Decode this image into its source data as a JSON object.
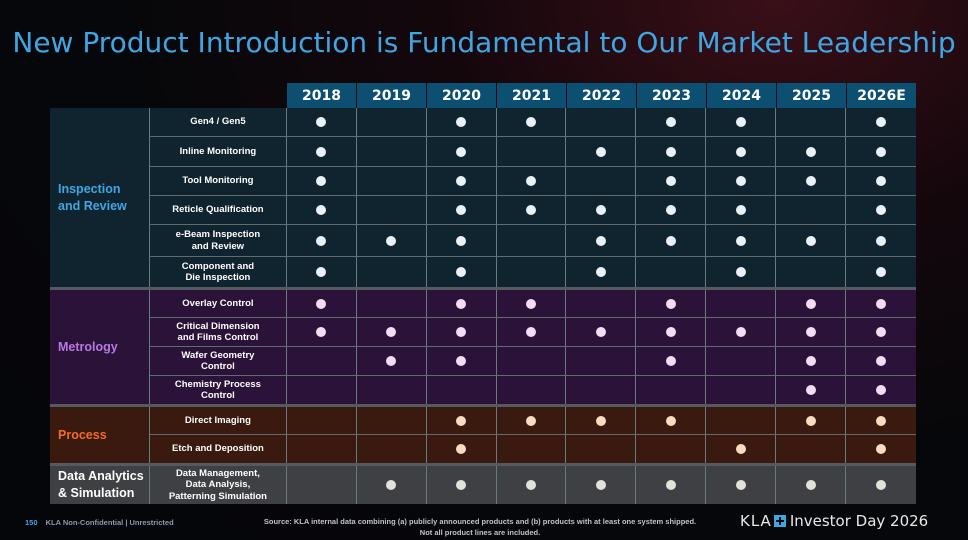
{
  "title": "New Product Introduction is Fundamental to Our Market Leadership",
  "years": [
    "2018",
    "2019",
    "2020",
    "2021",
    "2022",
    "2023",
    "2024",
    "2025",
    "2026E"
  ],
  "groups": [
    {
      "key": "insp",
      "label": "Inspection and Review",
      "label_lines": [
        "Inspection",
        "and Review"
      ],
      "rows": [
        {
          "name": [
            "Gen4 / Gen5"
          ],
          "h": 28,
          "marks": [
            1,
            0,
            1,
            1,
            0,
            1,
            1,
            0,
            1
          ]
        },
        {
          "name": [
            "Inline Monitoring"
          ],
          "h": 29,
          "marks": [
            1,
            0,
            1,
            0,
            1,
            1,
            1,
            1,
            1
          ]
        },
        {
          "name": [
            "Tool Monitoring"
          ],
          "h": 28,
          "marks": [
            1,
            0,
            1,
            1,
            0,
            1,
            1,
            1,
            1
          ]
        },
        {
          "name": [
            "Reticle Qualification"
          ],
          "h": 28,
          "marks": [
            1,
            0,
            1,
            1,
            1,
            1,
            1,
            0,
            1
          ]
        },
        {
          "name": [
            "e-Beam Inspection",
            "and Review"
          ],
          "h": 31,
          "marks": [
            1,
            1,
            1,
            0,
            1,
            1,
            1,
            1,
            1
          ]
        },
        {
          "name": [
            "Component and",
            "Die Inspection"
          ],
          "h": 30,
          "marks": [
            1,
            0,
            1,
            0,
            1,
            0,
            1,
            0,
            1
          ]
        }
      ]
    },
    {
      "key": "metro",
      "label": "Metrology",
      "label_lines": [
        "Metrology"
      ],
      "rows": [
        {
          "name": [
            "Overlay Control"
          ],
          "h": 27,
          "marks": [
            1,
            0,
            1,
            1,
            0,
            1,
            0,
            1,
            1
          ]
        },
        {
          "name": [
            "Critical Dimension",
            "and Films Control"
          ],
          "h": 28,
          "marks": [
            1,
            1,
            1,
            1,
            1,
            1,
            1,
            1,
            1
          ]
        },
        {
          "name": [
            "Wafer Geometry",
            "Control"
          ],
          "h": 28,
          "marks": [
            0,
            1,
            1,
            0,
            0,
            1,
            0,
            1,
            1
          ]
        },
        {
          "name": [
            "Chemistry Process",
            "Control"
          ],
          "h": 28,
          "marks": [
            0,
            0,
            0,
            0,
            0,
            0,
            0,
            1,
            1
          ]
        }
      ]
    },
    {
      "key": "proc",
      "label": "Process",
      "label_lines": [
        "Process"
      ],
      "rows": [
        {
          "name": [
            "Direct Imaging"
          ],
          "h": 27,
          "marks": [
            0,
            0,
            1,
            1,
            1,
            1,
            0,
            1,
            1
          ]
        },
        {
          "name": [
            "Etch and Deposition"
          ],
          "h": 28,
          "marks": [
            0,
            0,
            1,
            0,
            0,
            0,
            1,
            0,
            1
          ]
        }
      ]
    },
    {
      "key": "data",
      "label": "Data Analytics & Simulation",
      "label_lines": [
        "Data Analytics",
        "& Simulation"
      ],
      "rows": [
        {
          "name": [
            "Data Management,",
            "Data Analysis,",
            "Patterning Simulation"
          ],
          "h": 38,
          "marks": [
            0,
            1,
            1,
            1,
            1,
            1,
            1,
            1,
            1
          ]
        }
      ]
    }
  ],
  "footer": {
    "page": "150",
    "confidential": "KLA Non-Confidential | Unrestricted",
    "source_line1": "Source: KLA internal data combining (a) publicly announced products and (b) products with at least one system shipped.",
    "source_line2": "Not all product lines are included.",
    "logo_text": "KLA",
    "event": "Investor Day 2026"
  }
}
